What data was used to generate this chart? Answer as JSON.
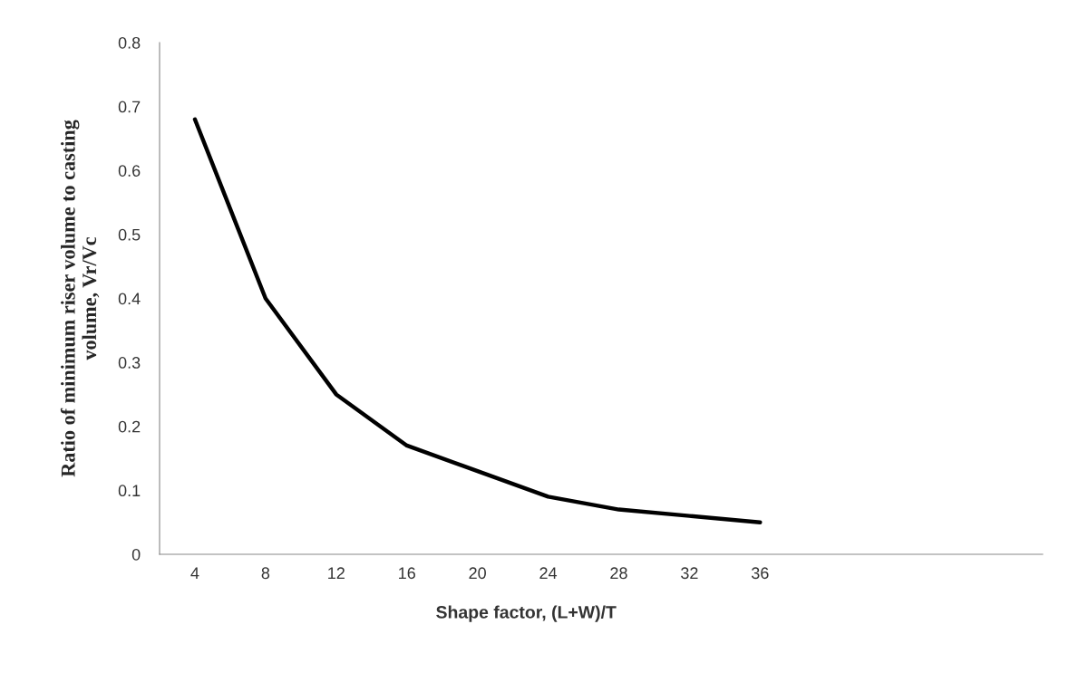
{
  "chart_data": {
    "type": "line",
    "xlabel": "Shape factor, (L+W)/T",
    "ylabel": "Ratio of minimum riser volume to casting\nvolume, Vr/Vc",
    "x": [
      4,
      8,
      12,
      16,
      20,
      24,
      28,
      32,
      36
    ],
    "series": [
      {
        "color": "#000000",
        "values": [
          0.68,
          0.4,
          0.25,
          0.17,
          0.13,
          0.09,
          0.07,
          0.06,
          0.05
        ]
      }
    ],
    "xlim": [
      2,
      52
    ],
    "xticks": [
      4,
      8,
      12,
      16,
      20,
      24,
      28,
      32,
      36
    ],
    "ylim": [
      0,
      0.8
    ],
    "yticks": [
      0,
      0.1,
      0.2,
      0.3,
      0.4,
      0.5,
      0.6,
      0.7,
      0.8
    ],
    "grid": false,
    "marker": "none",
    "line_style": "solid"
  }
}
